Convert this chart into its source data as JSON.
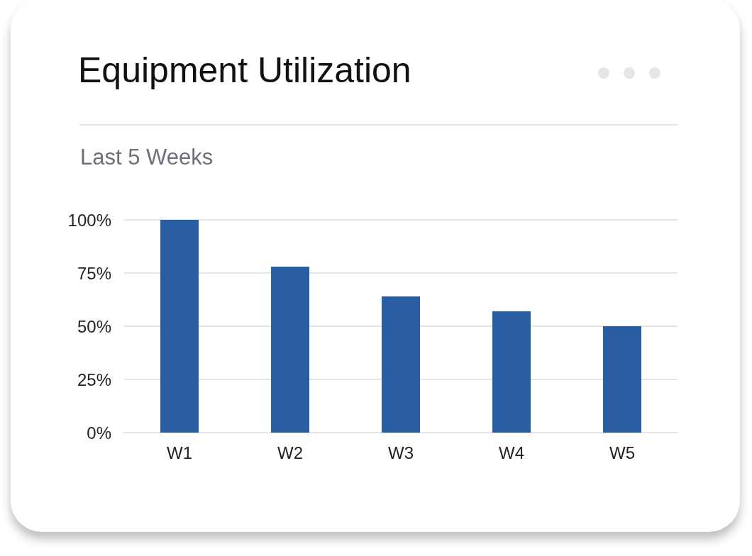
{
  "chart_data": {
    "type": "bar",
    "title": "Equipment Utilization",
    "subtitle": "Last 5 Weeks",
    "categories": [
      "W1",
      "W2",
      "W3",
      "W4",
      "W5"
    ],
    "values": [
      100,
      78,
      64,
      57,
      50
    ],
    "color": "#2a5ea3",
    "ylim": [
      0,
      100
    ],
    "yticks": [
      {
        "value": 0,
        "label": "0%"
      },
      {
        "value": 25,
        "label": "25%"
      },
      {
        "value": 50,
        "label": "50%"
      },
      {
        "value": 75,
        "label": "75%"
      },
      {
        "value": 100,
        "label": "100%"
      }
    ],
    "grid": "y"
  }
}
